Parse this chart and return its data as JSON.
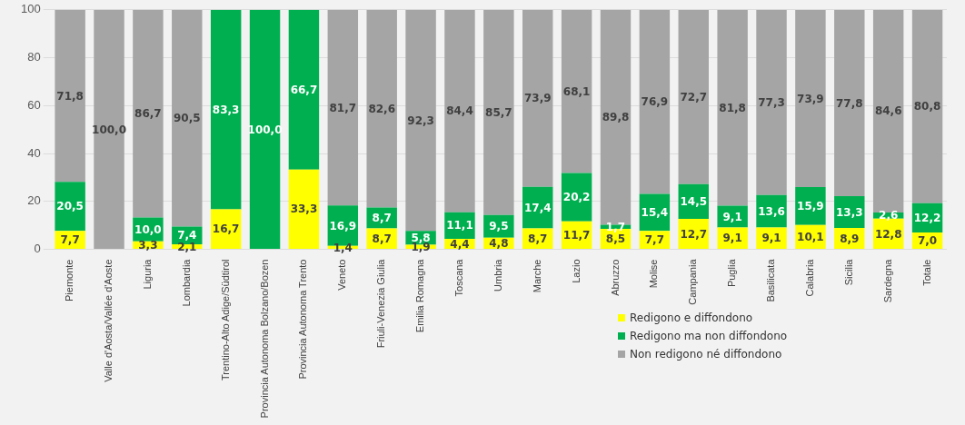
{
  "chart_data": {
    "type": "bar",
    "stacked": true,
    "categories": [
      "Piemonte",
      "Valle d'Aosta/Vallée d'Aoste",
      "Liguria",
      "Lombardia",
      "Trentino-Alto Adige/Südtirol",
      "Provincia Autonoma Bolzano/Bozen",
      "Provincia Autonoma Trento",
      "Veneto",
      "Friuli-Venezia Giulia",
      "Emilia Romagna",
      "Toscana",
      "Umbria",
      "Marche",
      "Lazio",
      "Abruzzo",
      "Molise",
      "Campania",
      "Puglia",
      "Basilicata",
      "Calabria",
      "Sicilia",
      "Sardegna",
      "Totale"
    ],
    "series": [
      {
        "name": "Redigono e diffondono",
        "color": "#ffff00",
        "values": [
          7.7,
          0,
          3.3,
          2.1,
          16.7,
          0,
          33.3,
          1.4,
          8.7,
          1.9,
          4.4,
          4.8,
          8.7,
          11.7,
          8.5,
          7.7,
          12.7,
          9.1,
          9.1,
          10.1,
          8.9,
          12.8,
          7.0
        ],
        "value_labels": [
          "7,7",
          null,
          "3,3",
          "2,1",
          "16,7",
          null,
          "33,3",
          "1,4",
          "8,7",
          "1,9",
          "4,4",
          "4,8",
          "8,7",
          "11,7",
          "8,5",
          "7,7",
          "12,7",
          "9,1",
          "9,1",
          "10,1",
          "8,9",
          "12,8",
          "7,0"
        ]
      },
      {
        "name": "Redigono ma non diffondono",
        "color": "#00b050",
        "values": [
          20.5,
          0,
          10.0,
          7.4,
          83.3,
          100,
          66.7,
          16.9,
          8.7,
          5.8,
          11.1,
          9.5,
          17.4,
          20.2,
          1.7,
          15.4,
          14.5,
          9.1,
          13.6,
          15.9,
          13.3,
          2.6,
          12.2
        ],
        "value_labels": [
          "20,5",
          null,
          "10,0",
          "7,4",
          "83,3",
          "100,0",
          "66,7",
          "16,9",
          "8,7",
          "5,8",
          "11,1",
          "9,5",
          "17,4",
          "20,2",
          "1,7",
          "15,4",
          "14,5",
          "9,1",
          "13,6",
          "15,9",
          "13,3",
          "2,6",
          "12,2"
        ]
      },
      {
        "name": "Non redigono né diffondono",
        "color": "#a5a5a5",
        "values": [
          71.8,
          100,
          86.7,
          90.5,
          0,
          0,
          0,
          81.7,
          82.6,
          92.3,
          84.4,
          85.7,
          73.9,
          68.1,
          89.8,
          76.9,
          72.7,
          81.8,
          77.3,
          73.9,
          77.8,
          84.6,
          80.8
        ],
        "value_labels": [
          "71,8",
          "100,0",
          "86,7",
          "90,5",
          null,
          null,
          null,
          "81,7",
          "82,6",
          "92,3",
          "84,4",
          "85,7",
          "73,9",
          "68,1",
          "89,8",
          "76,9",
          "72,7",
          "81,8",
          "77,3",
          "73,9",
          "77,8",
          "84,6",
          "80,8"
        ]
      }
    ],
    "ylim": [
      0,
      100
    ],
    "yticks": [
      0,
      20,
      40,
      60,
      80,
      100
    ],
    "grid": "y",
    "legend": "bottom right"
  }
}
